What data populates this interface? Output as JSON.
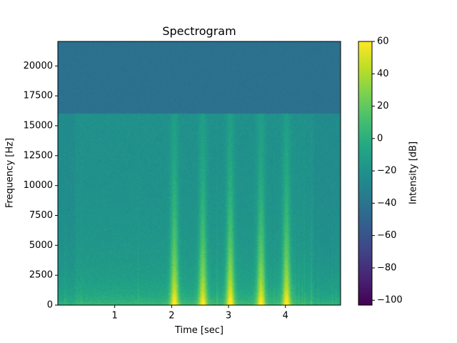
{
  "chart_data": {
    "type": "heatmap",
    "title": "Spectrogram",
    "xlabel": "Time [sec]",
    "ylabel": "Frequency [Hz]",
    "colorbar_label": "Intensity [dB]",
    "colormap": "viridis",
    "xlim": [
      0.0,
      4.97
    ],
    "ylim": [
      0,
      22050
    ],
    "clim": [
      -103,
      60
    ],
    "xticks": [
      1,
      2,
      3,
      4
    ],
    "xtick_labels": [
      "1",
      "2",
      "3",
      "4"
    ],
    "yticks": [
      0,
      2500,
      5000,
      7500,
      10000,
      12500,
      15000,
      17500,
      20000
    ],
    "ytick_labels": [
      "0",
      "2500",
      "5000",
      "7500",
      "10000",
      "12500",
      "15000",
      "17500",
      "20000"
    ],
    "cticks": [
      -100,
      -80,
      -60,
      -40,
      -20,
      0,
      20,
      40,
      60
    ],
    "ctick_labels": [
      "−100",
      "−80",
      "−60",
      "−40",
      "−20",
      "0",
      "20",
      "40",
      "60"
    ],
    "cutoff_frequency_hz": 16000,
    "events": [
      {
        "time": 2.05,
        "peak_db": 45
      },
      {
        "time": 2.55,
        "peak_db": 42
      },
      {
        "time": 3.03,
        "peak_db": 48
      },
      {
        "time": 3.57,
        "peak_db": 44
      },
      {
        "time": 4.02,
        "peak_db": 46
      }
    ]
  }
}
